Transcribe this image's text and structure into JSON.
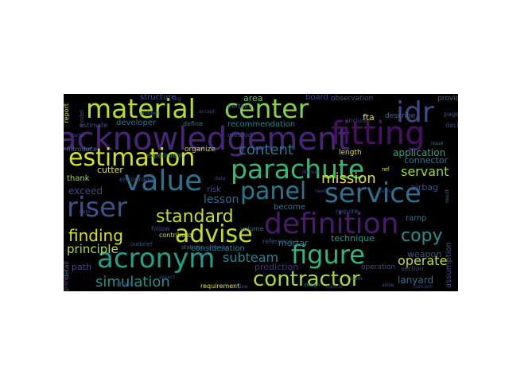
{
  "wordcloud": {
    "background": "#000000",
    "words": [
      {
        "text": "acknowledgement",
        "color": "#482576"
      },
      {
        "text": "material",
        "color": "#b5de2b"
      },
      {
        "text": "center",
        "color": "#84d44b"
      },
      {
        "text": "idr",
        "color": "#3e4a89"
      },
      {
        "text": "fitting",
        "color": "#471063"
      },
      {
        "text": "estimation",
        "color": "#d2e21b"
      },
      {
        "text": "parachute",
        "color": "#35b779"
      },
      {
        "text": "value",
        "color": "#2c728e"
      },
      {
        "text": "panel",
        "color": "#2a788e"
      },
      {
        "text": "service",
        "color": "#2c728e"
      },
      {
        "text": "riser",
        "color": "#3b528b"
      },
      {
        "text": "definition",
        "color": "#481a6c"
      },
      {
        "text": "advise",
        "color": "#bddf26"
      },
      {
        "text": "acronym",
        "color": "#1fa187"
      },
      {
        "text": "figure",
        "color": "#2fb47c"
      },
      {
        "text": "contractor",
        "color": "#a5db36"
      },
      {
        "text": "standard",
        "color": "#c2df23"
      },
      {
        "text": "finding",
        "color": "#d8e219"
      },
      {
        "text": "content",
        "color": "#2a788e"
      },
      {
        "text": "mission",
        "color": "#e5e419"
      },
      {
        "text": "servant",
        "color": "#9bd93c"
      },
      {
        "text": "copy",
        "color": "#21918c"
      },
      {
        "text": "simulation",
        "color": "#21918c"
      },
      {
        "text": "subteam",
        "color": "#25858e"
      },
      {
        "text": "principle",
        "color": "#b5de2b"
      },
      {
        "text": "operate",
        "color": "#c2df23"
      },
      {
        "text": "lesson",
        "color": "#31688e"
      },
      {
        "text": "exceed",
        "color": "#3e4989"
      },
      {
        "text": "area",
        "color": "#5ec962"
      },
      {
        "text": "board",
        "color": "#3e4989"
      },
      {
        "text": "structure",
        "color": "#3b528b"
      },
      {
        "text": "developer",
        "color": "#2c728e"
      },
      {
        "text": "recommendation",
        "color": "#26828e"
      },
      {
        "text": "application",
        "color": "#22a884"
      },
      {
        "text": "connector",
        "color": "#2a788e"
      },
      {
        "text": "airbag",
        "color": "#3b528b"
      },
      {
        "text": "cutter",
        "color": "#e5e419"
      },
      {
        "text": "thank",
        "color": "#a0da39"
      },
      {
        "text": "become",
        "color": "#2c728e"
      },
      {
        "text": "mortar",
        "color": "#2a788e"
      },
      {
        "text": "technique",
        "color": "#1f988b"
      },
      {
        "text": "weapon",
        "color": "#3b528b"
      },
      {
        "text": "lanyard",
        "color": "#2c728e"
      },
      {
        "text": "path",
        "color": "#3e4989"
      },
      {
        "text": "consideration",
        "color": "#25858e"
      },
      {
        "text": "prediction",
        "color": "#46337e"
      },
      {
        "text": "operation",
        "color": "#3e4989"
      },
      {
        "text": "ramp",
        "color": "#2c728e"
      },
      {
        "text": "assumption",
        "color": "#3b528b"
      },
      {
        "text": "section",
        "color": "#3e4989"
      },
      {
        "text": "fta",
        "color": "#e5e419"
      },
      {
        "text": "describe",
        "color": "#2c728e"
      },
      {
        "text": "length",
        "color": "#d8e219"
      },
      {
        "text": "include",
        "color": "#3e4989"
      },
      {
        "text": "experiment",
        "color": "#21918c"
      },
      {
        "text": "organize",
        "color": "#c8e020"
      },
      {
        "text": "introduce",
        "color": "#2c728e"
      },
      {
        "text": "encourage",
        "color": "#3e4989"
      },
      {
        "text": "estimate",
        "color": "#3b528b"
      },
      {
        "text": "define",
        "color": "#2c728e"
      },
      {
        "text": "method",
        "color": "#3b528b"
      },
      {
        "text": "pertain",
        "color": "#3b528b"
      },
      {
        "text": "observation",
        "color": "#3b528b"
      },
      {
        "text": "report",
        "color": "#d8e219"
      },
      {
        "text": "provide",
        "color": "#2c728e"
      },
      {
        "text": "decision",
        "color": "#3e4989"
      },
      {
        "text": "page",
        "color": "#3b528b"
      },
      {
        "text": "chart",
        "color": "#3e4989"
      },
      {
        "text": "reference",
        "color": "#3b528b"
      },
      {
        "text": "requirement",
        "color": "#e5e419"
      },
      {
        "text": "contributor",
        "color": "#c8e020"
      },
      {
        "text": "volume",
        "color": "#2c728e"
      },
      {
        "text": "follow",
        "color": "#3e4989"
      },
      {
        "text": "detail",
        "color": "#2c728e"
      },
      {
        "text": "statistic",
        "color": "#2c728e"
      },
      {
        "text": "change",
        "color": "#3e4989"
      },
      {
        "text": "require",
        "color": "#3b528b"
      },
      {
        "text": "model",
        "color": "#3e4989"
      },
      {
        "text": "risk",
        "color": "#3b528b"
      },
      {
        "text": "ref",
        "color": "#e5e419"
      },
      {
        "text": "program",
        "color": "#3e4989"
      },
      {
        "text": "result",
        "color": "#2c728e"
      },
      {
        "text": "outbrief",
        "color": "#3b528b"
      },
      {
        "text": "ing",
        "color": "#3e4989"
      },
      {
        "text": "allow",
        "color": "#3b528b"
      },
      {
        "text": "need",
        "color": "#3e4989"
      },
      {
        "text": "note",
        "color": "#3b528b"
      },
      {
        "text": "problem",
        "color": "#2c728e"
      },
      {
        "text": "accept",
        "color": "#3e4989"
      },
      {
        "text": "discuss",
        "color": "#3b528b"
      },
      {
        "text": "aspect",
        "color": "#3e4989"
      },
      {
        "text": "team",
        "color": "#3b528b"
      },
      {
        "text": "design",
        "color": "#2c728e"
      },
      {
        "text": "test",
        "color": "#3e4989"
      },
      {
        "text": "review",
        "color": "#3b528b"
      },
      {
        "text": "concern",
        "color": "#3e4989"
      },
      {
        "text": "factor",
        "color": "#3b528b"
      },
      {
        "text": "issue",
        "color": "#2c728e"
      },
      {
        "text": "loads",
        "color": "#3e4989"
      },
      {
        "text": "control",
        "color": "#3b528b"
      },
      {
        "text": "data",
        "color": "#3e4989"
      }
    ]
  }
}
